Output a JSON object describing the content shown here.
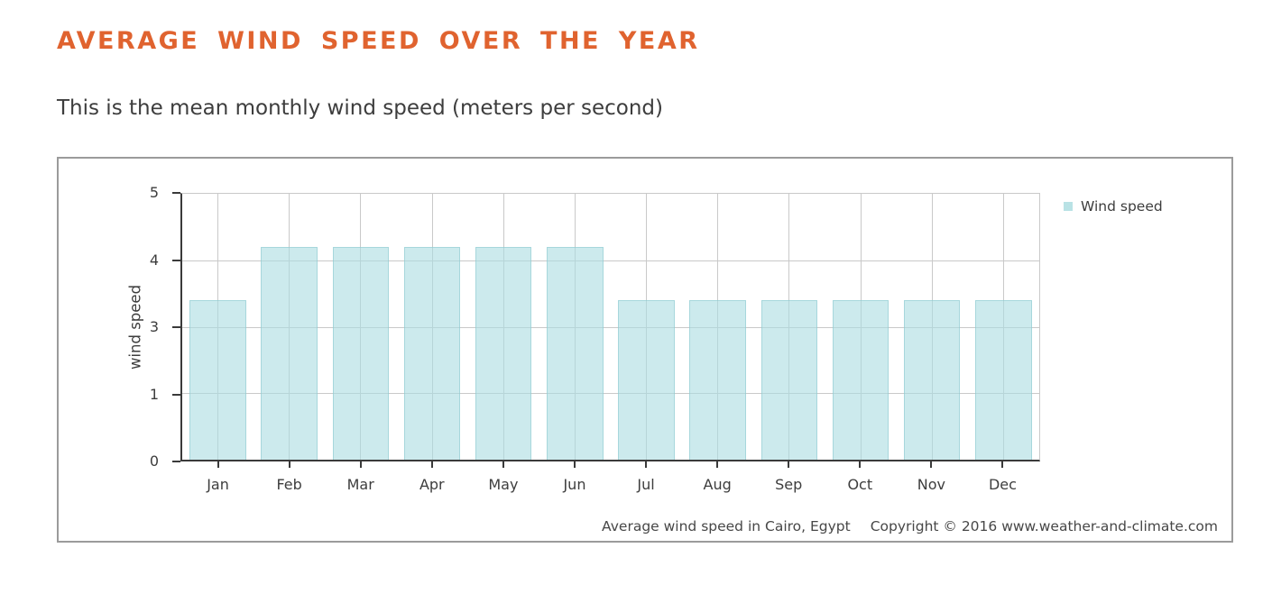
{
  "page": {
    "title": "AVERAGE WIND SPEED OVER THE YEAR",
    "subtitle": "This is the mean monthly wind speed (meters per second)"
  },
  "chart_data": {
    "type": "bar",
    "categories": [
      "Jan",
      "Feb",
      "Mar",
      "Apr",
      "May",
      "Jun",
      "Jul",
      "Aug",
      "Sep",
      "Oct",
      "Nov",
      "Dec"
    ],
    "series": [
      {
        "name": "Wind speed",
        "values": [
          3.4,
          4.2,
          4.2,
          4.2,
          4.2,
          4.2,
          3.4,
          3.4,
          3.4,
          3.4,
          3.4,
          3.4
        ]
      }
    ],
    "ylabel": "wind speed",
    "xlabel": "",
    "y_ticks": [
      0,
      1,
      3,
      4,
      5
    ],
    "ylim": [
      0,
      5
    ],
    "grid": true,
    "legend_position": "top-right",
    "footer_caption": "Average wind speed in Cairo, Egypt",
    "footer_copyright": "Copyright © 2016 www.weather-and-climate.com"
  },
  "colors": {
    "title": "#e0632f",
    "text": "#3d3d3d",
    "caption_text": "#474747",
    "axis": "#3a3a3a",
    "grid": "#c9c9c9",
    "bar_fill": "rgba(173,221,226,0.62)",
    "bar_border": "rgba(136,199,206,0.55)",
    "legend_swatch": "#b9e2e5",
    "panel_border": "#9b9b9b"
  }
}
